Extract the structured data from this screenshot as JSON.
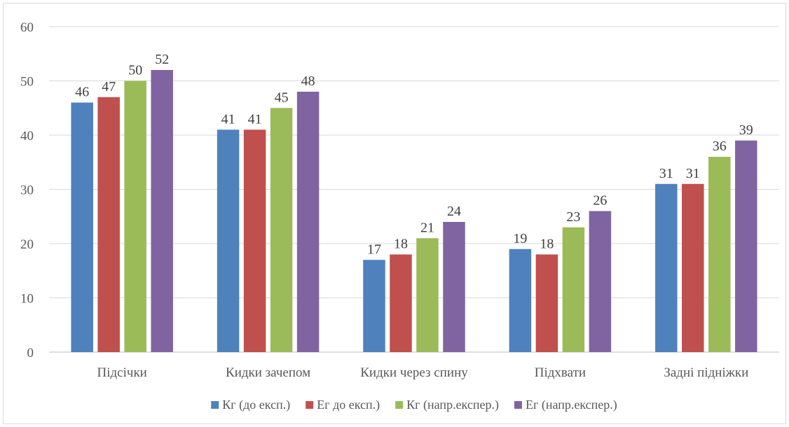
{
  "chart_data": {
    "type": "bar",
    "title": "",
    "xlabel": "",
    "ylabel": "",
    "categories": [
      "Підсічки",
      "Кидки зачепом",
      "Кидки через спину",
      "Підхвати",
      "Задні підніжки"
    ],
    "series": [
      {
        "name": "Кг (до експ.)",
        "color": "#4f81bd",
        "values": [
          46,
          41,
          17,
          19,
          31
        ]
      },
      {
        "name": "Ег до експ.)",
        "color": "#c0504d",
        "values": [
          47,
          41,
          18,
          18,
          31
        ]
      },
      {
        "name": "Кг (напр.експер.)",
        "color": "#9bbb59",
        "values": [
          50,
          45,
          21,
          23,
          36
        ]
      },
      {
        "name": "Ег (напр.експер.)",
        "color": "#8064a2",
        "values": [
          52,
          48,
          24,
          26,
          39
        ]
      }
    ],
    "ylim": [
      0,
      60
    ],
    "yticks": [
      0,
      10,
      20,
      30,
      40,
      50,
      60
    ],
    "grid": true,
    "legend_position": "bottom",
    "data_labels": true
  }
}
